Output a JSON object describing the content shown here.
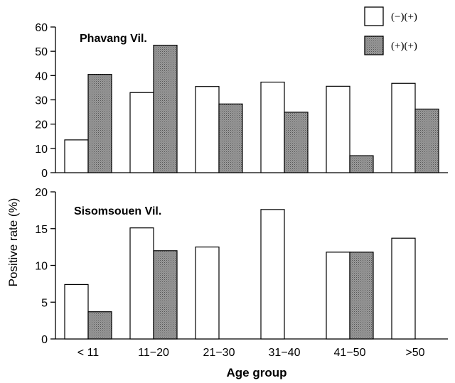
{
  "chart_data": [
    {
      "type": "bar",
      "title": "Phavang Vil.",
      "categories": [
        "< 11",
        "11−20",
        "21−30",
        "31−40",
        "41−50",
        ">50"
      ],
      "series": [
        {
          "name": "(−)(+)",
          "values": [
            13.5,
            33,
            35.5,
            37.3,
            35.6,
            36.8
          ],
          "fill": "#ffffff"
        },
        {
          "name": "(+)(+)",
          "values": [
            40.5,
            52.5,
            28.3,
            24.9,
            7,
            26.2
          ],
          "fill": "#8c8c8c"
        }
      ],
      "ylim": [
        0,
        60
      ],
      "yticks": [
        0,
        10,
        20,
        30,
        40,
        50,
        60
      ],
      "grid": false
    },
    {
      "type": "bar",
      "title": "Sisomsouen Vil.",
      "categories": [
        "< 11",
        "11−20",
        "21−30",
        "31−40",
        "41−50",
        ">50"
      ],
      "series": [
        {
          "name": "(−)(+)",
          "values": [
            7.4,
            15.1,
            12.5,
            17.6,
            11.8,
            13.7
          ],
          "fill": "#ffffff"
        },
        {
          "name": "(+)(+)",
          "values": [
            3.7,
            12,
            0,
            0,
            11.8,
            0
          ],
          "fill": "#8c8c8c"
        }
      ],
      "ylim": [
        0,
        20
      ],
      "yticks": [
        0,
        5,
        10,
        15,
        20
      ],
      "grid": false
    }
  ],
  "axes": {
    "ylabel": "Positive rate (%)",
    "xlabel": "Age group"
  },
  "legend": {
    "placement": "top-right",
    "entries": [
      {
        "label": "(−)(+)",
        "fill": "#ffffff"
      },
      {
        "label": "(+)(+)",
        "fill": "#8c8c8c"
      }
    ]
  }
}
